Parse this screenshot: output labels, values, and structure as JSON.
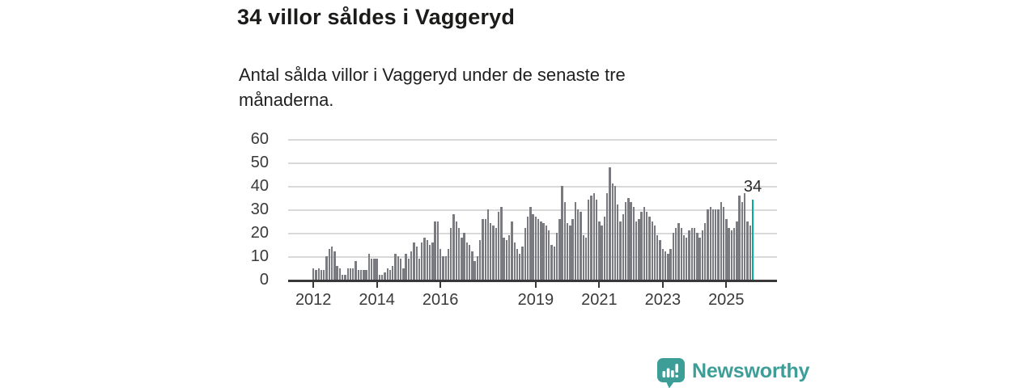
{
  "header": {
    "title": "34 villor såldes i Vaggeryd",
    "subtitle": "Antal sålda villor i Vaggeryd under de senaste tre månaderna."
  },
  "chart_data": {
    "type": "bar",
    "title": "34 villor såldes i Vaggeryd",
    "xlabel": "",
    "ylabel": "",
    "ylim": [
      0,
      60
    ],
    "yticks": [
      0,
      10,
      20,
      30,
      40,
      50,
      60
    ],
    "xtick_years": [
      2012,
      2014,
      2016,
      2019,
      2021,
      2023,
      2025
    ],
    "start_year": 2012,
    "start_month": 1,
    "frequency": "monthly",
    "grid": true,
    "legend_position": "none",
    "bar_color": "#7a7a81",
    "grid_color": "#d9d9d9",
    "axis_color": "#383838",
    "values": [
      5,
      4,
      5,
      4,
      4,
      10,
      13,
      14,
      12,
      6,
      5,
      2,
      2,
      5,
      5,
      5,
      8,
      4,
      4,
      4,
      4,
      11,
      9,
      9,
      9,
      2,
      2,
      3,
      5,
      4,
      6,
      11,
      10,
      9,
      5,
      11,
      9,
      12,
      16,
      14,
      9,
      16,
      18,
      17,
      15,
      16,
      25,
      25,
      13,
      10,
      10,
      13,
      22,
      28,
      25,
      22,
      18,
      20,
      16,
      15,
      12,
      8,
      10,
      17,
      26,
      26,
      30,
      24,
      23,
      22,
      29,
      31,
      18,
      17,
      19,
      25,
      16,
      13,
      11,
      14,
      22,
      27,
      31,
      28,
      27,
      26,
      25,
      24,
      23,
      21,
      15,
      14,
      20,
      26,
      40,
      33,
      24,
      23,
      26,
      33,
      30,
      29,
      19,
      18,
      34,
      36,
      37,
      34,
      25,
      23,
      27,
      37,
      48,
      41,
      40,
      32,
      25,
      28,
      33,
      35,
      33,
      31,
      25,
      26,
      29,
      31,
      29,
      27,
      25,
      23,
      19,
      17,
      13,
      12,
      11,
      13,
      20,
      22,
      24,
      22,
      19,
      18,
      21,
      22,
      22,
      20,
      18,
      21,
      24,
      30,
      31,
      30,
      30,
      30,
      33,
      31,
      26,
      22,
      21,
      22,
      25,
      36,
      33,
      37,
      25,
      23,
      34
    ],
    "highlight": {
      "index": 166,
      "label": "34",
      "color": "#00ae9f"
    }
  },
  "footer": {
    "brand_label": "Newsworthy",
    "brand_color": "#3d9e98",
    "logo_icon": "newsworthy-chart-bubble-icon"
  }
}
